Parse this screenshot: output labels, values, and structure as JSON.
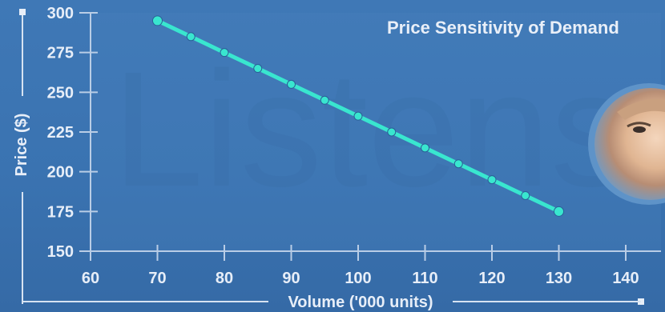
{
  "chart_data": {
    "type": "line",
    "title": "Price Sensitivity of Demand",
    "xlabel": "Volume ('000 units)",
    "ylabel": "Price ($)",
    "xlim": [
      60,
      140
    ],
    "ylim": [
      150,
      300
    ],
    "x_ticks": [
      "60",
      "70",
      "80",
      "90",
      "100",
      "110",
      "120",
      "130",
      "140"
    ],
    "y_ticks": [
      "150",
      "175",
      "200",
      "225",
      "250",
      "275",
      "300"
    ],
    "series": [
      {
        "x": [
          70,
          75,
          80,
          85,
          90,
          95,
          100,
          105,
          110,
          115,
          120,
          125,
          130
        ],
        "y": [
          295,
          285,
          275,
          265,
          255,
          245,
          235,
          225,
          215,
          205,
          195,
          185,
          175
        ],
        "color": "#39e6cf"
      }
    ],
    "grid": false,
    "legend": "none"
  },
  "background": {
    "watermark_text": "Listens",
    "colors": {
      "background": "#3a73b1",
      "axis": "#b9cde6",
      "text": "#e7eef8"
    }
  }
}
